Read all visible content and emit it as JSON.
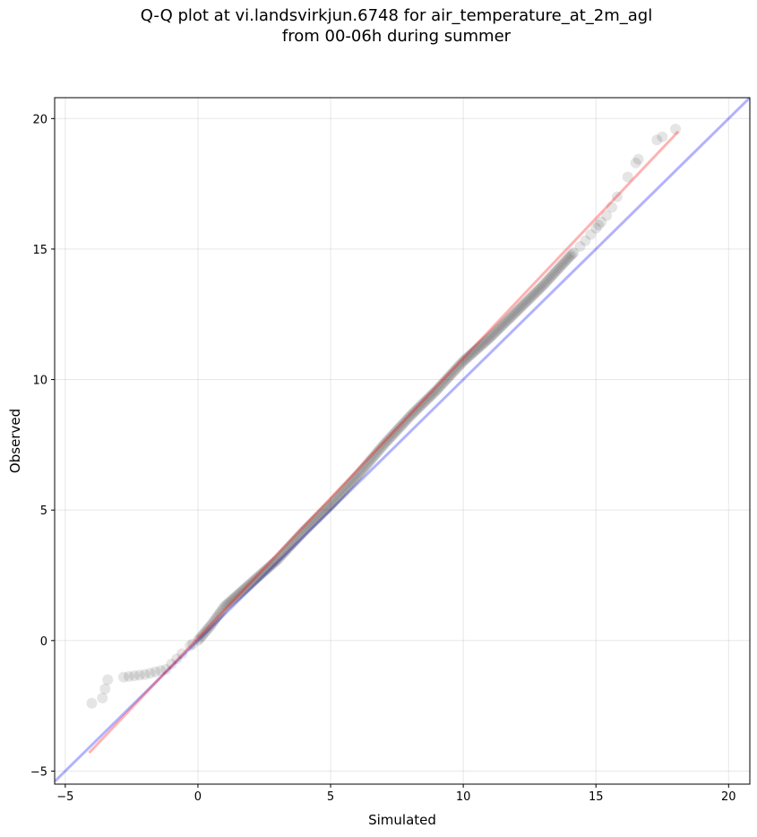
{
  "chart_data": {
    "type": "scatter",
    "title_line1": "Q-Q plot at vi.landsvirkjun.6748 for air_temperature_at_2m_agl",
    "title_line2": "from 00-06h during summer",
    "xlabel": "Simulated",
    "ylabel": "Observed",
    "xlim": [
      -5.4,
      20.8
    ],
    "ylim": [
      -5.5,
      20.8
    ],
    "xticks": [
      -5,
      0,
      5,
      10,
      15,
      20
    ],
    "yticks": [
      -5,
      0,
      5,
      10,
      15,
      20
    ],
    "grid": true,
    "colors": {
      "points": "#000000",
      "fit_line": "#ff0000",
      "identity_line": "#0000ff"
    },
    "identity_line": {
      "x": [
        -5.4,
        20.8
      ],
      "y": [
        -5.4,
        20.8
      ]
    },
    "fit_line": {
      "x": [
        -4.1,
        18.1
      ],
      "y": [
        -4.3,
        19.5
      ]
    },
    "quantile_anchors": {
      "x": [
        -4.0,
        -3.6,
        -3.4,
        -2.8,
        -2.0,
        -1.2,
        -0.8,
        -0.3,
        0.0,
        0.5,
        1.0,
        2.0,
        3.0,
        4.0,
        5.0,
        6.0,
        7.0,
        8.0,
        9.0,
        10.0,
        11.0,
        12.0,
        13.0,
        14.0,
        14.5,
        15.0,
        15.5,
        16.0,
        16.5,
        17.0,
        17.5,
        18.0
      ],
      "y": [
        -2.4,
        -2.2,
        -1.5,
        -1.4,
        -1.3,
        -1.1,
        -0.7,
        -0.2,
        0.0,
        0.6,
        1.3,
        2.2,
        3.1,
        4.2,
        5.2,
        6.3,
        7.5,
        8.6,
        9.6,
        10.7,
        11.6,
        12.6,
        13.6,
        14.7,
        15.2,
        15.8,
        16.4,
        17.4,
        18.3,
        19.0,
        19.3,
        19.6
      ]
    }
  }
}
